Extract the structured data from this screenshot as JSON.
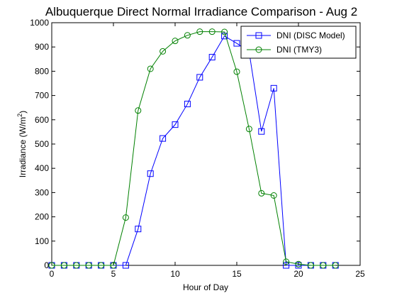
{
  "chart_data": {
    "type": "line",
    "title": "Albuquerque Direct Normal Irradiance Comparison - Aug 2",
    "xlabel": "Hour of Day",
    "ylabel": "Irradiance (W/m",
    "ylabel_sup": "2",
    "ylabel_close": ")",
    "xlim": [
      0,
      25
    ],
    "ylim": [
      0,
      1000
    ],
    "xticks": [
      0,
      5,
      10,
      15,
      20,
      25
    ],
    "yticks": [
      0,
      100,
      200,
      300,
      400,
      500,
      600,
      700,
      800,
      900,
      1000
    ],
    "legend_placement": "top-right",
    "grid": false,
    "x": [
      0,
      1,
      2,
      3,
      4,
      5,
      6,
      7,
      8,
      9,
      10,
      11,
      12,
      13,
      14,
      15,
      16,
      17,
      18,
      19,
      20,
      21,
      22,
      23
    ],
    "series": [
      {
        "name": "DNI (DISC Model)",
        "color": "#0000ff",
        "marker": "square",
        "values": [
          0,
          0,
          0,
          0,
          0,
          0,
          0,
          150,
          378,
          523,
          580,
          665,
          775,
          858,
          945,
          915,
          880,
          552,
          730,
          0,
          0,
          0,
          0,
          0
        ]
      },
      {
        "name": "DNI (TMY3)",
        "color": "#008000",
        "marker": "circle",
        "values": [
          0,
          0,
          0,
          0,
          0,
          0,
          197,
          638,
          810,
          882,
          925,
          948,
          963,
          963,
          962,
          798,
          562,
          297,
          288,
          15,
          5,
          0,
          0,
          0
        ]
      }
    ]
  }
}
